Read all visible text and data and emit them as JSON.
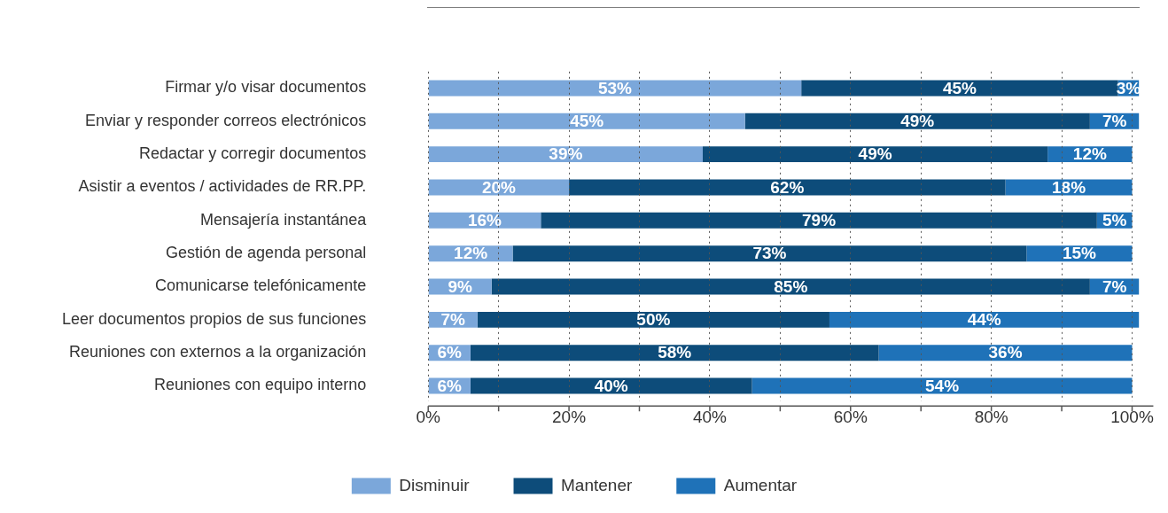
{
  "chart_data": {
    "type": "bar",
    "orientation": "horizontal",
    "stacked": true,
    "categories": [
      "Firmar y/o visar documentos",
      "Enviar y responder correos electrónicos",
      "Redactar y corregir documentos",
      "Asistir a eventos / actividades de RR.PP.",
      "Mensajería instantánea",
      "Gestión de agenda personal",
      "Comunicarse telefónicamente",
      "Leer documentos propios de sus funciones",
      "Reuniones con externos a la organización",
      "Reuniones con equipo interno"
    ],
    "series": [
      {
        "name": "Disminuir",
        "color": "#7ba7da",
        "values": [
          53,
          45,
          39,
          20,
          16,
          12,
          9,
          7,
          6,
          6
        ],
        "value_labels": [
          "53%",
          "45%",
          "39%",
          "20%",
          "16%",
          "12%",
          "9%",
          "7%",
          "6%",
          "6%"
        ]
      },
      {
        "name": "Mantener",
        "color": "#0d4c7a",
        "values": [
          45,
          49,
          49,
          62,
          79,
          73,
          85,
          50,
          58,
          40
        ],
        "value_labels": [
          "45%",
          "49%",
          "49%",
          "62%",
          "79%",
          "73%",
          "85%",
          "50%",
          "58%",
          "40%"
        ]
      },
      {
        "name": "Aumentar",
        "color": "#1f72b8",
        "values": [
          3,
          7,
          12,
          18,
          5,
          15,
          7,
          44,
          36,
          54
        ],
        "value_labels": [
          "3%",
          "7%",
          "12%",
          "18%",
          "5%",
          "15%",
          "7%",
          "44%",
          "36%",
          "54%"
        ]
      }
    ],
    "xlim": [
      0,
      101
    ],
    "xticks": [
      {
        "value": 0,
        "label": "0%"
      },
      {
        "value": 10,
        "label": null
      },
      {
        "value": 20,
        "label": "20%"
      },
      {
        "value": 30,
        "label": null
      },
      {
        "value": 40,
        "label": "40%"
      },
      {
        "value": 50,
        "label": null
      },
      {
        "value": 60,
        "label": "60%"
      },
      {
        "value": 70,
        "label": null
      },
      {
        "value": 80,
        "label": "80%"
      },
      {
        "value": 90,
        "label": null
      },
      {
        "value": 100,
        "label": "100%"
      }
    ],
    "grid": "x",
    "legend": "bottom"
  }
}
